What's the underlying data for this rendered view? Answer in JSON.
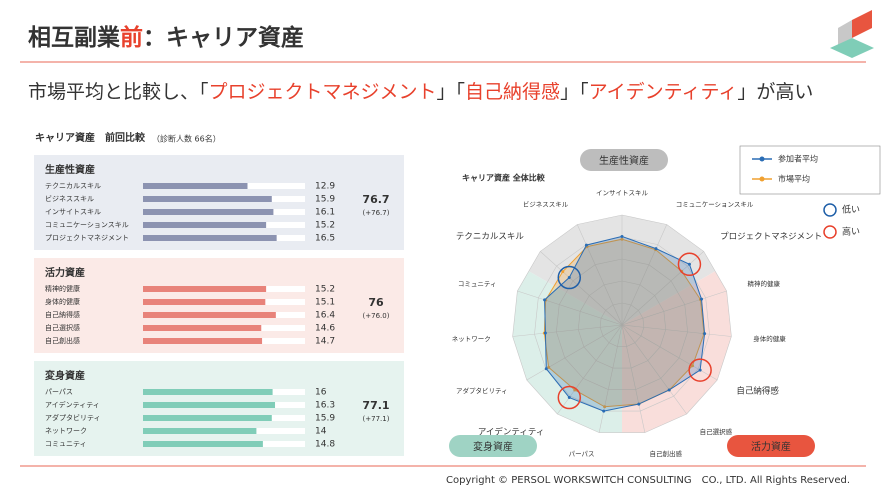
{
  "header": {
    "title_parts": [
      "相互副業",
      "前",
      "：キャリア資産"
    ],
    "subtitle_parts": [
      "市場平均と比較し、「",
      "プロジェクトマネジメント",
      "」「",
      "自己納得感",
      "」「",
      "アイデンティティ",
      "」が高い"
    ]
  },
  "panel": {
    "title": "キャリア資産　前回比較",
    "note": "（診断人数 66名）",
    "xlim": [
      0,
      20
    ],
    "groups": [
      {
        "name": "生産性資産",
        "color": "#6a7896",
        "bar_color": "#8c93b1",
        "bg": "#e9ecf2",
        "total": 76.7,
        "change": "(+76.7)",
        "items": [
          {
            "label": "テクニカルスキル",
            "value": 12.9
          },
          {
            "label": "ビジネススキル",
            "value": 15.9
          },
          {
            "label": "インサイトスキル",
            "value": 16.1
          },
          {
            "label": "コミュニケーションスキル",
            "value": 15.2
          },
          {
            "label": "プロジェクトマネジメント",
            "value": 16.5
          }
        ]
      },
      {
        "name": "活力資産",
        "color": "#e0604f",
        "bar_color": "#e8837a",
        "bg": "#fbeae7",
        "total": 76.0,
        "change": "(+76.0)",
        "items": [
          {
            "label": "精神的健康",
            "value": 15.2
          },
          {
            "label": "身体的健康",
            "value": 15.1
          },
          {
            "label": "自己納得感",
            "value": 16.4
          },
          {
            "label": "自己選択感",
            "value": 14.6
          },
          {
            "label": "自己創出感",
            "value": 14.7
          }
        ]
      },
      {
        "name": "変身資産",
        "color": "#3aa58a",
        "bar_color": "#80cdb8",
        "bg": "#e6f3ef",
        "total": 77.1,
        "change": "(+77.1)",
        "items": [
          {
            "label": "パーパス",
            "value": 16.0
          },
          {
            "label": "アイデンティティ",
            "value": 16.3
          },
          {
            "label": "アダプタビリティ",
            "value": 15.9
          },
          {
            "label": "ネットワーク",
            "value": 14.0
          },
          {
            "label": "コミュニティ",
            "value": 14.8
          }
        ]
      }
    ]
  },
  "radar": {
    "type": "radar",
    "title": "キャリア資産 全体比較",
    "rlim": [
      0,
      20
    ],
    "axes": [
      "インサイトスキル",
      "コミュニケーションスキル",
      "プロジェクトマネジメント",
      "精神的健康",
      "身体的健康",
      "自己納得感",
      "自己選択感",
      "自己創出感",
      "パーパス",
      "アイデンティティ",
      "アダプタビリティ",
      "ネットワーク",
      "コミュニティ",
      "テクニカルスキル",
      "ビジネススキル"
    ],
    "axis_colors": [
      "#555",
      "#555",
      "#e8412c",
      "#555",
      "#555",
      "#e8412c",
      "#555",
      "#555",
      "#555",
      "#e8412c",
      "#555",
      "#555",
      "#555",
      "#1f5fa8",
      "#555"
    ],
    "series": [
      {
        "name": "参加者平均",
        "color": "#2a6db5",
        "values": [
          16.1,
          15.2,
          16.5,
          15.2,
          15.1,
          16.4,
          14.6,
          14.7,
          16.0,
          16.3,
          15.9,
          14.0,
          14.8,
          12.9,
          15.9
        ]
      },
      {
        "name": "市場平均",
        "color": "#f0a030",
        "values": [
          15.6,
          15.0,
          14.6,
          15.0,
          15.0,
          14.8,
          14.6,
          14.7,
          15.2,
          14.6,
          15.4,
          14.2,
          14.6,
          14.5,
          15.6
        ]
      }
    ],
    "marker_legend": [
      {
        "label": "低い",
        "color": "#1f5fa8"
      },
      {
        "label": "高い",
        "color": "#e8412c"
      }
    ],
    "groups": [
      {
        "name": "生産性資産",
        "color": "#bdbdbd",
        "from": 12.5,
        "to": 14.5,
        "to2": 2.5,
        "fill": "#e4e4e4"
      },
      {
        "name": "活力資産",
        "color": "#e8553f",
        "from": 2.5,
        "to": 7.5,
        "fill": "#f9dedb"
      },
      {
        "name": "変身資産",
        "color": "#9fd3c4",
        "from": 7.5,
        "to": 12.5,
        "fill": "#dcefe9"
      }
    ]
  },
  "footer": "Copyright © PERSOL WORKSWITCH CONSULTING　CO., LTD. All Rights Reserved."
}
